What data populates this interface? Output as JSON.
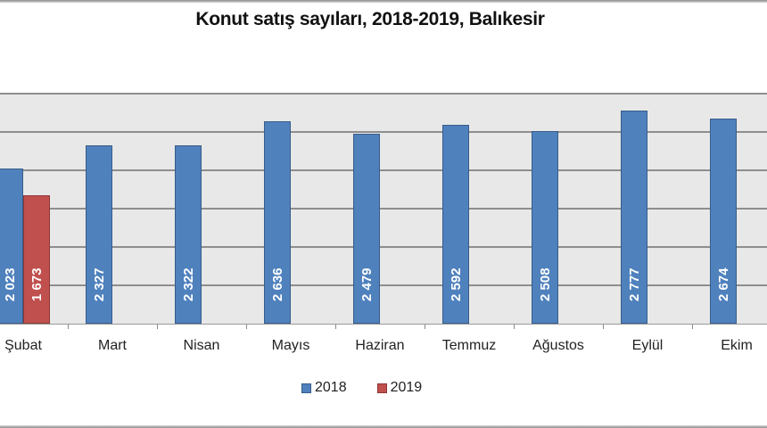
{
  "chart_data": {
    "type": "bar",
    "title": "Konut satış sayıları, 2018-2019, Balıkesir",
    "xlabel": "",
    "ylabel": "",
    "ylim": [
      0,
      3000
    ],
    "grid": true,
    "gridline_step": 500,
    "legend_position": "bottom",
    "categories": [
      "Şubat",
      "Mart",
      "Nisan",
      "Mayıs",
      "Haziran",
      "Temmuz",
      "Ağustos",
      "Eylül",
      "Ekim"
    ],
    "series": [
      {
        "name": "2018",
        "color": "#4f81bd",
        "values": [
          2023,
          2327,
          2322,
          2636,
          2479,
          2592,
          2508,
          2777,
          2674
        ],
        "labels": [
          "2 023",
          "2 327",
          "2 322",
          "2 636",
          "2 479",
          "2 592",
          "2 508",
          "2 777",
          "2 674"
        ]
      },
      {
        "name": "2019",
        "color": "#c0504d",
        "values": [
          1673,
          null,
          null,
          null,
          null,
          null,
          null,
          null,
          null
        ],
        "labels": [
          "1 673",
          "",
          "",
          "",
          "",
          "",
          "",
          "",
          ""
        ]
      }
    ]
  },
  "legend": {
    "items": [
      {
        "label": "2018",
        "color": "#4f81bd"
      },
      {
        "label": "2019",
        "color": "#c0504d"
      }
    ]
  }
}
